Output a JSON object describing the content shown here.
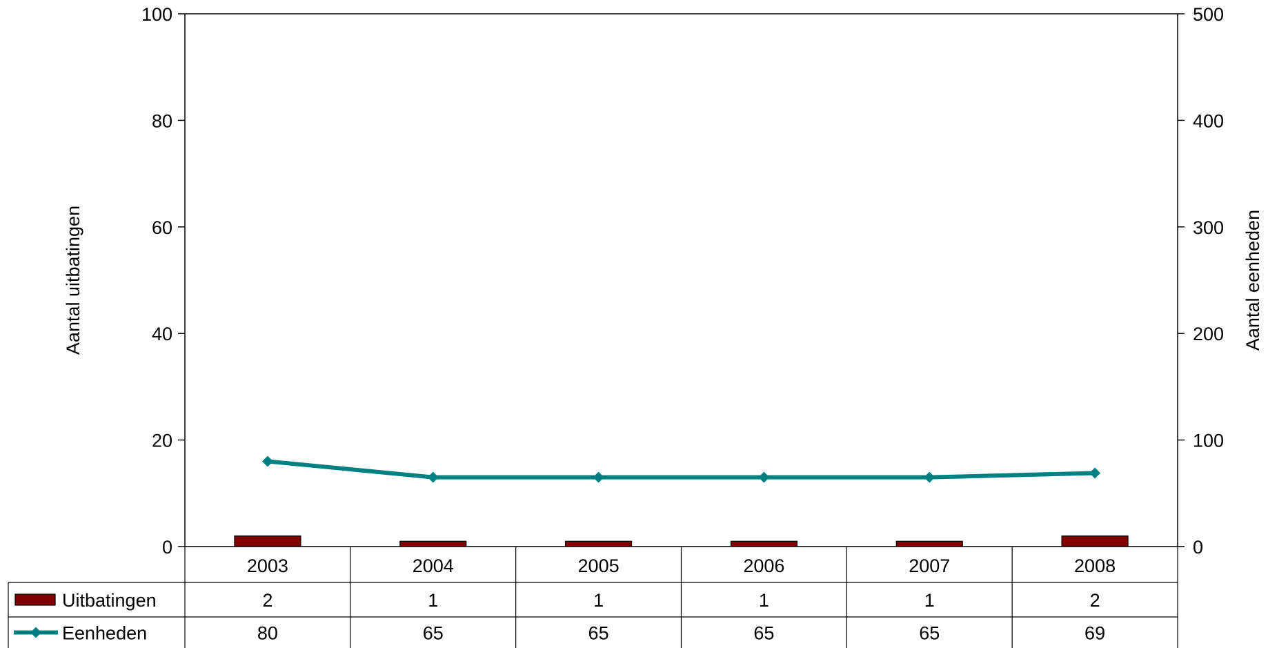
{
  "chart_data": {
    "type": "bar",
    "categories": [
      "2003",
      "2004",
      "2005",
      "2006",
      "2007",
      "2008"
    ],
    "series": [
      {
        "name": "Uitbatingen",
        "type": "bar",
        "axis": "left",
        "color": "#800000",
        "values": [
          2,
          1,
          1,
          1,
          1,
          2
        ]
      },
      {
        "name": "Eenheden",
        "type": "line",
        "axis": "right",
        "color": "#008080",
        "marker": "diamond",
        "values": [
          80,
          65,
          65,
          65,
          65,
          69
        ]
      }
    ],
    "ylabel_left": "Aantal uitbatingen",
    "ylabel_right": "Aantal eenheden",
    "ylim_left": [
      0,
      100
    ],
    "ylim_right": [
      0,
      500
    ],
    "yticks_left": [
      "0",
      "20",
      "40",
      "60",
      "80",
      "100"
    ],
    "yticks_right": [
      "0",
      "100",
      "200",
      "300",
      "400",
      "500"
    ],
    "grid": false,
    "legend": "data-table"
  }
}
